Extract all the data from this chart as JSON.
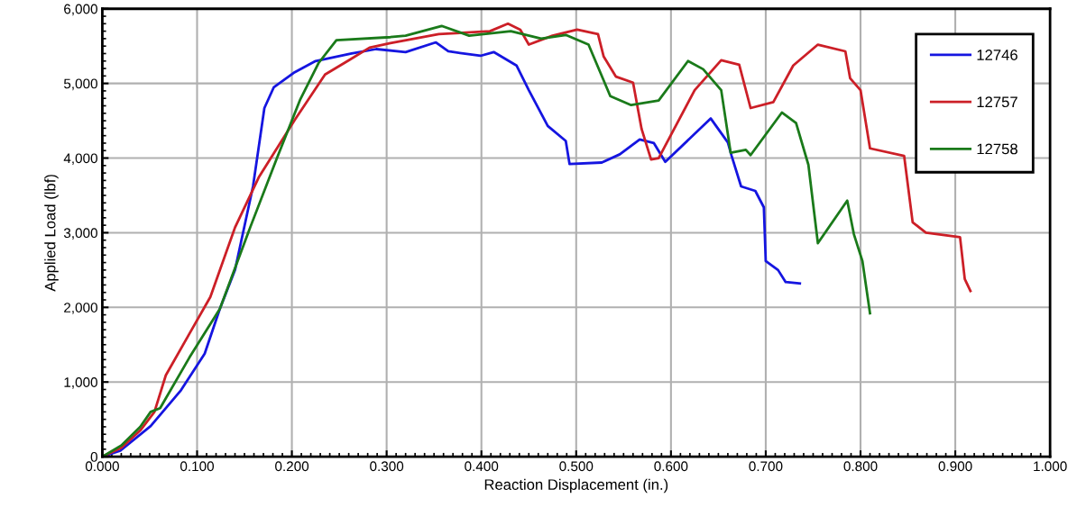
{
  "chart_data": {
    "type": "line",
    "xlabel": "Reaction Displacement (in.)",
    "ylabel": "Applied Load (lbf)",
    "xlim": [
      0,
      1
    ],
    "ylim": [
      0,
      6000
    ],
    "xticks": [
      {
        "value": 0,
        "label": "0.000"
      },
      {
        "value": 0.1,
        "label": "0.100"
      },
      {
        "value": 0.2,
        "label": "0.200"
      },
      {
        "value": 0.3,
        "label": "0.300"
      },
      {
        "value": 0.4,
        "label": "0.400"
      },
      {
        "value": 0.5,
        "label": "0.500"
      },
      {
        "value": 0.6,
        "label": "0.600"
      },
      {
        "value": 0.7,
        "label": "0.700"
      },
      {
        "value": 0.8,
        "label": "0.800"
      },
      {
        "value": 0.9,
        "label": "0.900"
      },
      {
        "value": 1,
        "label": "1.000"
      }
    ],
    "yticks": [
      0,
      {
        "value": 1000,
        "label": "1,000"
      },
      {
        "value": 2000,
        "label": "2,000"
      },
      {
        "value": 3000,
        "label": "3,000"
      },
      {
        "value": 4000,
        "label": "4,000"
      },
      {
        "value": 5000,
        "label": "5,000"
      },
      {
        "value": 6000,
        "label": "6,000"
      }
    ],
    "grid": true,
    "legend": "top right",
    "marker": "none",
    "line_style": "solid",
    "series": [
      {
        "name": "12746",
        "color": "#1515e0",
        "x": [
          0,
          0.019,
          0.051,
          0.083,
          0.108,
          0.124,
          0.14,
          0.159,
          0.171,
          0.181,
          0.203,
          0.225,
          0.263,
          0.289,
          0.32,
          0.352,
          0.365,
          0.399,
          0.413,
          0.437,
          0.45,
          0.47,
          0.489,
          0.493,
          0.527,
          0.546,
          0.567,
          0.582,
          0.594,
          0.642,
          0.66,
          0.664,
          0.674,
          0.689,
          0.698,
          0.7,
          0.713,
          0.721,
          0.736
        ],
        "values": [
          0,
          80,
          410,
          890,
          1380,
          1980,
          2500,
          3620,
          4670,
          4950,
          5150,
          5300,
          5400,
          5460,
          5420,
          5550,
          5430,
          5370,
          5420,
          5240,
          4910,
          4430,
          4230,
          3920,
          3940,
          4050,
          4250,
          4200,
          3950,
          4530,
          4210,
          4030,
          3620,
          3560,
          3340,
          2620,
          2500,
          2340,
          2320
        ]
      },
      {
        "name": "12757",
        "color": "#cc1f27",
        "x": [
          0,
          0.02,
          0.04,
          0.055,
          0.067,
          0.092,
          0.114,
          0.14,
          0.165,
          0.203,
          0.235,
          0.26,
          0.282,
          0.304,
          0.355,
          0.409,
          0.428,
          0.441,
          0.45,
          0.475,
          0.501,
          0.523,
          0.529,
          0.542,
          0.56,
          0.569,
          0.579,
          0.587,
          0.625,
          0.653,
          0.672,
          0.684,
          0.708,
          0.729,
          0.755,
          0.784,
          0.789,
          0.8,
          0.81,
          0.846,
          0.855,
          0.869,
          0.905,
          0.91,
          0.916
        ],
        "values": [
          0,
          120,
          350,
          600,
          1090,
          1650,
          2140,
          3070,
          3740,
          4510,
          5120,
          5310,
          5480,
          5540,
          5660,
          5700,
          5800,
          5720,
          5520,
          5640,
          5720,
          5660,
          5360,
          5090,
          5010,
          4390,
          3980,
          4000,
          4910,
          5310,
          5250,
          4670,
          4750,
          5240,
          5520,
          5430,
          5070,
          4910,
          4130,
          4030,
          3140,
          3000,
          2940,
          2380,
          2220
        ]
      },
      {
        "name": "12758",
        "color": "#1a7a1a",
        "x": [
          0,
          0.02,
          0.04,
          0.051,
          0.061,
          0.092,
          0.124,
          0.156,
          0.184,
          0.209,
          0.228,
          0.247,
          0.304,
          0.32,
          0.358,
          0.387,
          0.431,
          0.463,
          0.489,
          0.513,
          0.536,
          0.558,
          0.587,
          0.618,
          0.634,
          0.653,
          0.663,
          0.679,
          0.684,
          0.717,
          0.732,
          0.745,
          0.755,
          0.786,
          0.793,
          0.802,
          0.81
        ],
        "values": [
          0,
          150,
          400,
          600,
          650,
          1330,
          1980,
          3070,
          3990,
          4790,
          5270,
          5580,
          5620,
          5640,
          5770,
          5640,
          5700,
          5600,
          5650,
          5520,
          4830,
          4710,
          4770,
          5300,
          5190,
          4910,
          4070,
          4110,
          4040,
          4610,
          4470,
          3910,
          2860,
          3430,
          2980,
          2620,
          1920
        ]
      }
    ]
  }
}
